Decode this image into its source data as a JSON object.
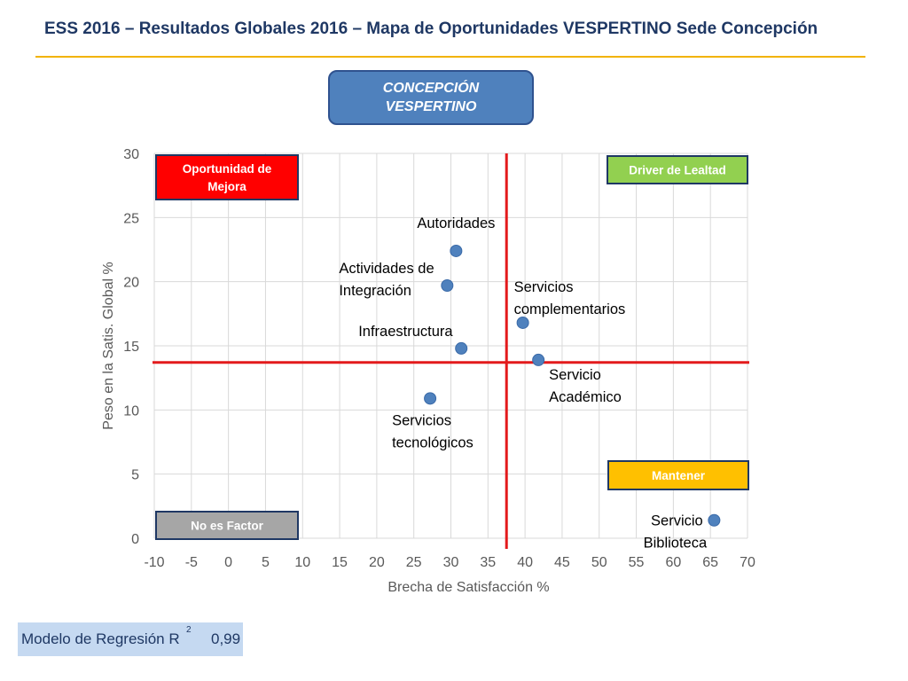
{
  "header": {
    "title": "ESS 2016 – Resultados Globales 2016 – Mapa de Oportunidades VESPERTINO Sede Concepción"
  },
  "campus_box": {
    "line1": "CONCEPCIÓN",
    "line2": "VESPERTINO"
  },
  "quadrants": {
    "top_left": {
      "label": "Oportunidad de Mejora",
      "color": "#ff0000"
    },
    "top_right": {
      "label": "Driver de Lealtad",
      "color": "#92d050"
    },
    "bottom_right": {
      "label": "Mantener",
      "color": "#ffc000"
    },
    "bottom_left": {
      "label": "No es Factor",
      "color": "#a6a6a6"
    }
  },
  "regression": {
    "label": "Modelo de Regresión R",
    "superscript": "2",
    "value": "0,99"
  },
  "colors": {
    "title": "#1f3864",
    "accent_rule": "#f2b300",
    "point": "#4f81bd",
    "reference_lines": "#e31a1c",
    "axis_text": "#595959"
  },
  "chart_data": {
    "type": "scatter",
    "title": "",
    "xlabel": "Brecha de Satisfacción %",
    "ylabel": "Peso en la Satis. Global %",
    "xlim": [
      -10,
      70
    ],
    "ylim": [
      0,
      30
    ],
    "xticks": [
      "-10",
      "-5",
      "0",
      "5",
      "10",
      "15",
      "20",
      "25",
      "30",
      "35",
      "40",
      "45",
      "50",
      "55",
      "60",
      "65",
      "70"
    ],
    "yticks": [
      "0",
      "5",
      "10",
      "15",
      "20",
      "25",
      "30"
    ],
    "grid": true,
    "legend": "none",
    "reference_lines": {
      "x": 37.5,
      "y": 13.7
    },
    "points": [
      {
        "name": "Autoridades",
        "x": 30.7,
        "y": 22.4
      },
      {
        "name": "Actividades de Integración",
        "x": 29.5,
        "y": 19.7
      },
      {
        "name": "Servicios complementarios",
        "x": 39.7,
        "y": 16.8
      },
      {
        "name": "Infraestructura",
        "x": 31.4,
        "y": 14.8
      },
      {
        "name": "Servicio Académico",
        "x": 41.8,
        "y": 13.9
      },
      {
        "name": "Servicios tecnológicos",
        "x": 27.2,
        "y": 10.9
      },
      {
        "name": "Servicio Biblioteca",
        "x": 65.5,
        "y": 1.4
      }
    ]
  }
}
